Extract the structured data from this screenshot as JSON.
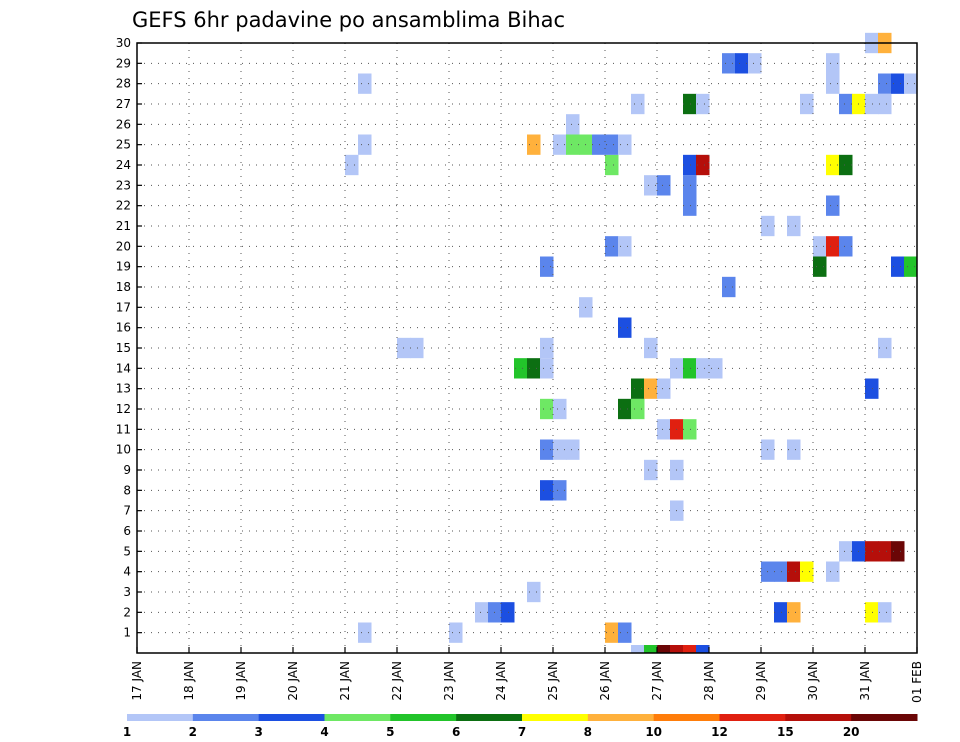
{
  "chart_data": {
    "type": "heatmap",
    "title": "GEFS 6hr padavine po ansamblima Bihac",
    "x_ticks": [
      "17 JAN",
      "18 JAN",
      "19 JAN",
      "20 JAN",
      "21 JAN",
      "22 JAN",
      "23 JAN",
      "24 JAN",
      "25 JAN",
      "26 JAN",
      "27 JAN",
      "28 JAN",
      "29 JAN",
      "30 JAN",
      "31 JAN",
      "01 FEB"
    ],
    "y_ticks": [
      "1",
      "2",
      "3",
      "4",
      "5",
      "6",
      "7",
      "8",
      "9",
      "10",
      "11",
      "12",
      "13",
      "14",
      "15",
      "16",
      "17",
      "18",
      "19",
      "20",
      "21",
      "22",
      "23",
      "24",
      "25",
      "26",
      "27",
      "28",
      "29",
      "30"
    ],
    "x_range_days": [
      0,
      15
    ],
    "y_range": [
      0,
      30
    ],
    "grid": true,
    "colorbar_labels": [
      "1",
      "2",
      "3",
      "4",
      "5",
      "6",
      "7",
      "8",
      "10",
      "12",
      "15",
      "20"
    ],
    "colorbar_colors": [
      "#b3c6f7",
      "#5b85ec",
      "#1c4fe1",
      "#6ee864",
      "#22c42a",
      "#0c6f12",
      "#ffff00",
      "#ffb13c",
      "#ff7d0a",
      "#e02010",
      "#b50f0a",
      "#6b0606"
    ],
    "cells": [
      [
        21.25,
        1,
        1
      ],
      [
        23.0,
        1,
        1
      ],
      [
        26.0,
        1,
        8
      ],
      [
        26.25,
        1,
        2
      ],
      [
        23.5,
        2,
        1
      ],
      [
        23.75,
        2,
        2
      ],
      [
        24.0,
        2,
        3
      ],
      [
        29.25,
        2,
        3
      ],
      [
        29.5,
        2,
        8
      ],
      [
        31.0,
        2,
        7
      ],
      [
        31.25,
        2,
        1
      ],
      [
        24.5,
        3,
        1
      ],
      [
        29.0,
        4,
        2
      ],
      [
        29.25,
        4,
        2
      ],
      [
        29.5,
        4,
        11
      ],
      [
        29.75,
        4,
        7
      ],
      [
        30.25,
        4,
        1
      ],
      [
        30.5,
        5,
        1
      ],
      [
        30.75,
        5,
        3
      ],
      [
        31.0,
        5,
        11
      ],
      [
        31.25,
        5,
        11
      ],
      [
        31.5,
        5,
        12
      ],
      [
        27.25,
        7,
        1
      ],
      [
        24.75,
        8,
        3
      ],
      [
        25.0,
        8,
        2
      ],
      [
        26.75,
        9,
        1
      ],
      [
        27.25,
        9,
        1
      ],
      [
        24.75,
        10,
        2
      ],
      [
        25.0,
        10,
        1
      ],
      [
        25.25,
        10,
        1
      ],
      [
        29.0,
        10,
        1
      ],
      [
        29.5,
        10,
        1
      ],
      [
        27.0,
        11,
        1
      ],
      [
        27.25,
        11,
        10
      ],
      [
        27.5,
        11,
        4
      ],
      [
        24.75,
        12,
        4
      ],
      [
        25.0,
        12,
        1
      ],
      [
        26.25,
        12,
        6
      ],
      [
        26.5,
        12,
        4
      ],
      [
        26.5,
        13,
        6
      ],
      [
        26.75,
        13,
        8
      ],
      [
        27.0,
        13,
        1
      ],
      [
        31.0,
        13,
        3
      ],
      [
        24.25,
        14,
        5
      ],
      [
        24.5,
        14,
        6
      ],
      [
        24.75,
        14,
        1
      ],
      [
        27.25,
        14,
        1
      ],
      [
        27.5,
        14,
        5
      ],
      [
        27.75,
        14,
        1
      ],
      [
        28.0,
        14,
        1
      ],
      [
        22.0,
        15,
        1
      ],
      [
        22.25,
        15,
        1
      ],
      [
        24.75,
        15,
        1
      ],
      [
        26.75,
        15,
        1
      ],
      [
        31.25,
        15,
        1
      ],
      [
        26.25,
        16,
        3
      ],
      [
        25.5,
        17,
        1
      ],
      [
        28.25,
        18,
        2
      ],
      [
        24.75,
        19,
        2
      ],
      [
        30.0,
        19,
        6
      ],
      [
        31.5,
        19,
        3
      ],
      [
        31.75,
        19,
        5
      ],
      [
        26.0,
        20,
        2
      ],
      [
        26.25,
        20,
        1
      ],
      [
        30.0,
        20,
        1
      ],
      [
        30.25,
        20,
        10
      ],
      [
        30.5,
        20,
        2
      ],
      [
        29.0,
        21,
        1
      ],
      [
        29.5,
        21,
        1
      ],
      [
        27.5,
        22,
        2
      ],
      [
        30.25,
        22,
        2
      ],
      [
        26.75,
        23,
        1
      ],
      [
        27.0,
        23,
        2
      ],
      [
        27.5,
        23,
        2
      ],
      [
        21.0,
        24,
        1
      ],
      [
        26.0,
        24,
        4
      ],
      [
        27.5,
        24,
        3
      ],
      [
        27.75,
        24,
        11
      ],
      [
        30.25,
        24,
        7
      ],
      [
        30.5,
        24,
        6
      ],
      [
        21.25,
        25,
        1
      ],
      [
        24.5,
        25,
        8
      ],
      [
        25.0,
        25,
        1
      ],
      [
        25.25,
        25,
        4
      ],
      [
        25.5,
        25,
        4
      ],
      [
        25.75,
        25,
        2
      ],
      [
        26.0,
        25,
        2
      ],
      [
        26.25,
        25,
        1
      ],
      [
        25.25,
        26,
        1
      ],
      [
        21.25,
        28,
        1
      ],
      [
        30.25,
        28,
        1
      ],
      [
        31.25,
        28,
        2
      ],
      [
        31.5,
        28,
        3
      ],
      [
        31.75,
        28,
        1
      ],
      [
        26.5,
        27,
        1
      ],
      [
        27.5,
        27,
        6
      ],
      [
        27.75,
        27,
        1
      ],
      [
        29.75,
        27,
        1
      ],
      [
        30.5,
        27,
        2
      ],
      [
        30.75,
        27,
        7
      ],
      [
        31.0,
        27,
        1
      ],
      [
        31.25,
        27,
        1
      ],
      [
        28.25,
        29,
        2
      ],
      [
        28.5,
        29,
        3
      ],
      [
        28.75,
        29,
        1
      ],
      [
        30.25,
        29,
        1
      ],
      [
        31.0,
        30,
        1
      ],
      [
        31.25,
        30,
        8
      ],
      [
        26.5,
        0,
        1
      ],
      [
        26.75,
        0,
        5
      ],
      [
        27.0,
        0,
        12
      ],
      [
        27.25,
        0,
        11
      ],
      [
        27.5,
        0,
        10
      ],
      [
        27.75,
        0,
        3
      ]
    ]
  }
}
